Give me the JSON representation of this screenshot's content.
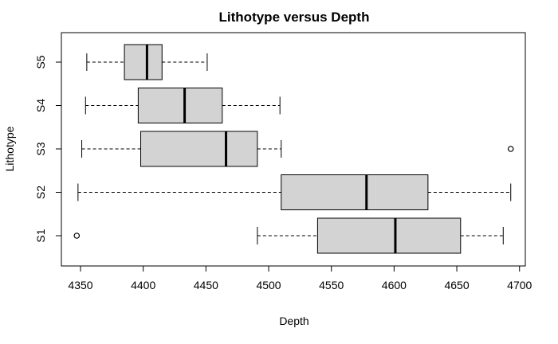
{
  "chart_data": {
    "type": "boxplot",
    "orientation": "horizontal",
    "title": "Lithotype versus Depth",
    "xlabel": "Depth",
    "ylabel": "Lithotype",
    "xlim": [
      4340,
      4700
    ],
    "xticks": [
      4350,
      4400,
      4450,
      4500,
      4550,
      4600,
      4650,
      4700
    ],
    "grid": false,
    "categories": [
      "S1",
      "S2",
      "S3",
      "S4",
      "S5"
    ],
    "box_fill": "#d3d3d3",
    "boxes": [
      {
        "name": "S1",
        "whisker_low": 4491,
        "q1": 4539,
        "median": 4601,
        "q3": 4653,
        "whisker_high": 4687,
        "outliers": [
          4347
        ]
      },
      {
        "name": "S2",
        "whisker_low": 4348,
        "q1": 4510,
        "median": 4578,
        "q3": 4627,
        "whisker_high": 4693,
        "outliers": []
      },
      {
        "name": "S3",
        "whisker_low": 4351,
        "q1": 4398,
        "median": 4466,
        "q3": 4491,
        "whisker_high": 4510,
        "outliers": [
          4693
        ]
      },
      {
        "name": "S4",
        "whisker_low": 4354,
        "q1": 4396,
        "median": 4433,
        "q3": 4463,
        "whisker_high": 4509,
        "outliers": []
      },
      {
        "name": "S5",
        "whisker_low": 4355,
        "q1": 4385,
        "median": 4403,
        "q3": 4415,
        "whisker_high": 4451,
        "outliers": []
      }
    ]
  }
}
